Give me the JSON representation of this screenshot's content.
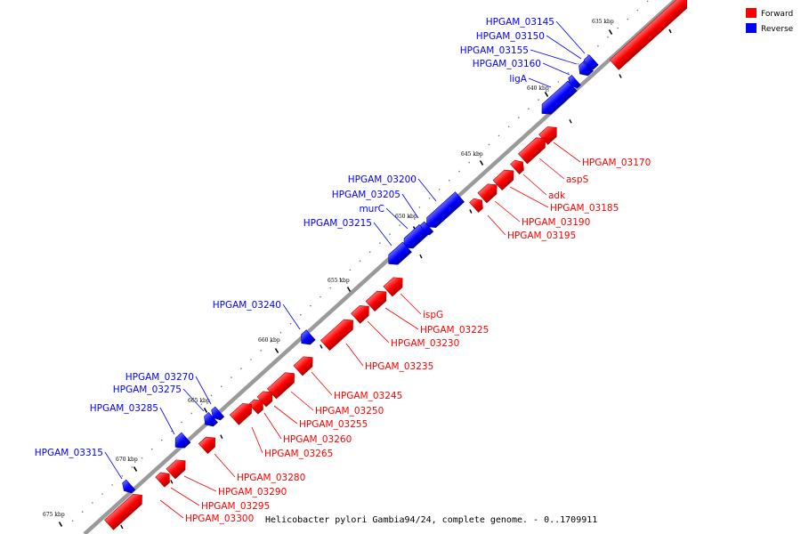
{
  "colors": {
    "forward": "#ff0000",
    "reverse": "#0000ff",
    "backbone": "#999999"
  },
  "legend": [
    {
      "label": "Forward",
      "strand": "forward"
    },
    {
      "label": "Reverse",
      "strand": "reverse"
    }
  ],
  "caption": "Helicobacter pylori Gambia94/24, complete genome. - 0..1709911",
  "ticks": [
    "635 kbp",
    "640 kbp",
    "645 kbp",
    "650 kbp",
    "655 kbp",
    "660 kbp",
    "665 kbp",
    "670 kbp",
    "675 kbp"
  ],
  "genes": [
    {
      "name": "HPGAM_03145",
      "strand": "reverse"
    },
    {
      "name": "HPGAM_03150",
      "strand": "reverse"
    },
    {
      "name": "HPGAM_03155",
      "strand": "reverse"
    },
    {
      "name": "HPGAM_03160",
      "strand": "reverse"
    },
    {
      "name": "ligA",
      "strand": "reverse"
    },
    {
      "name": "HPGAM_03170",
      "strand": "forward"
    },
    {
      "name": "aspS",
      "strand": "forward"
    },
    {
      "name": "adk",
      "strand": "forward"
    },
    {
      "name": "HPGAM_03185",
      "strand": "forward"
    },
    {
      "name": "HPGAM_03190",
      "strand": "forward"
    },
    {
      "name": "HPGAM_03195",
      "strand": "forward"
    },
    {
      "name": "HPGAM_03200",
      "strand": "reverse"
    },
    {
      "name": "HPGAM_03205",
      "strand": "reverse"
    },
    {
      "name": "murC",
      "strand": "reverse"
    },
    {
      "name": "HPGAM_03215",
      "strand": "reverse"
    },
    {
      "name": "ispG",
      "strand": "forward"
    },
    {
      "name": "HPGAM_03225",
      "strand": "forward"
    },
    {
      "name": "HPGAM_03230",
      "strand": "forward"
    },
    {
      "name": "HPGAM_03235",
      "strand": "forward"
    },
    {
      "name": "HPGAM_03240",
      "strand": "reverse"
    },
    {
      "name": "HPGAM_03245",
      "strand": "forward"
    },
    {
      "name": "HPGAM_03250",
      "strand": "forward"
    },
    {
      "name": "HPGAM_03255",
      "strand": "forward"
    },
    {
      "name": "HPGAM_03260",
      "strand": "forward"
    },
    {
      "name": "HPGAM_03265",
      "strand": "forward"
    },
    {
      "name": "HPGAM_03270",
      "strand": "reverse"
    },
    {
      "name": "HPGAM_03275",
      "strand": "reverse"
    },
    {
      "name": "HPGAM_03280",
      "strand": "forward"
    },
    {
      "name": "HPGAM_03285",
      "strand": "reverse"
    },
    {
      "name": "HPGAM_03290",
      "strand": "forward"
    },
    {
      "name": "HPGAM_03295",
      "strand": "forward"
    },
    {
      "name": "HPGAM_03300",
      "strand": "forward"
    },
    {
      "name": "HPGAM_03315",
      "strand": "reverse"
    }
  ]
}
